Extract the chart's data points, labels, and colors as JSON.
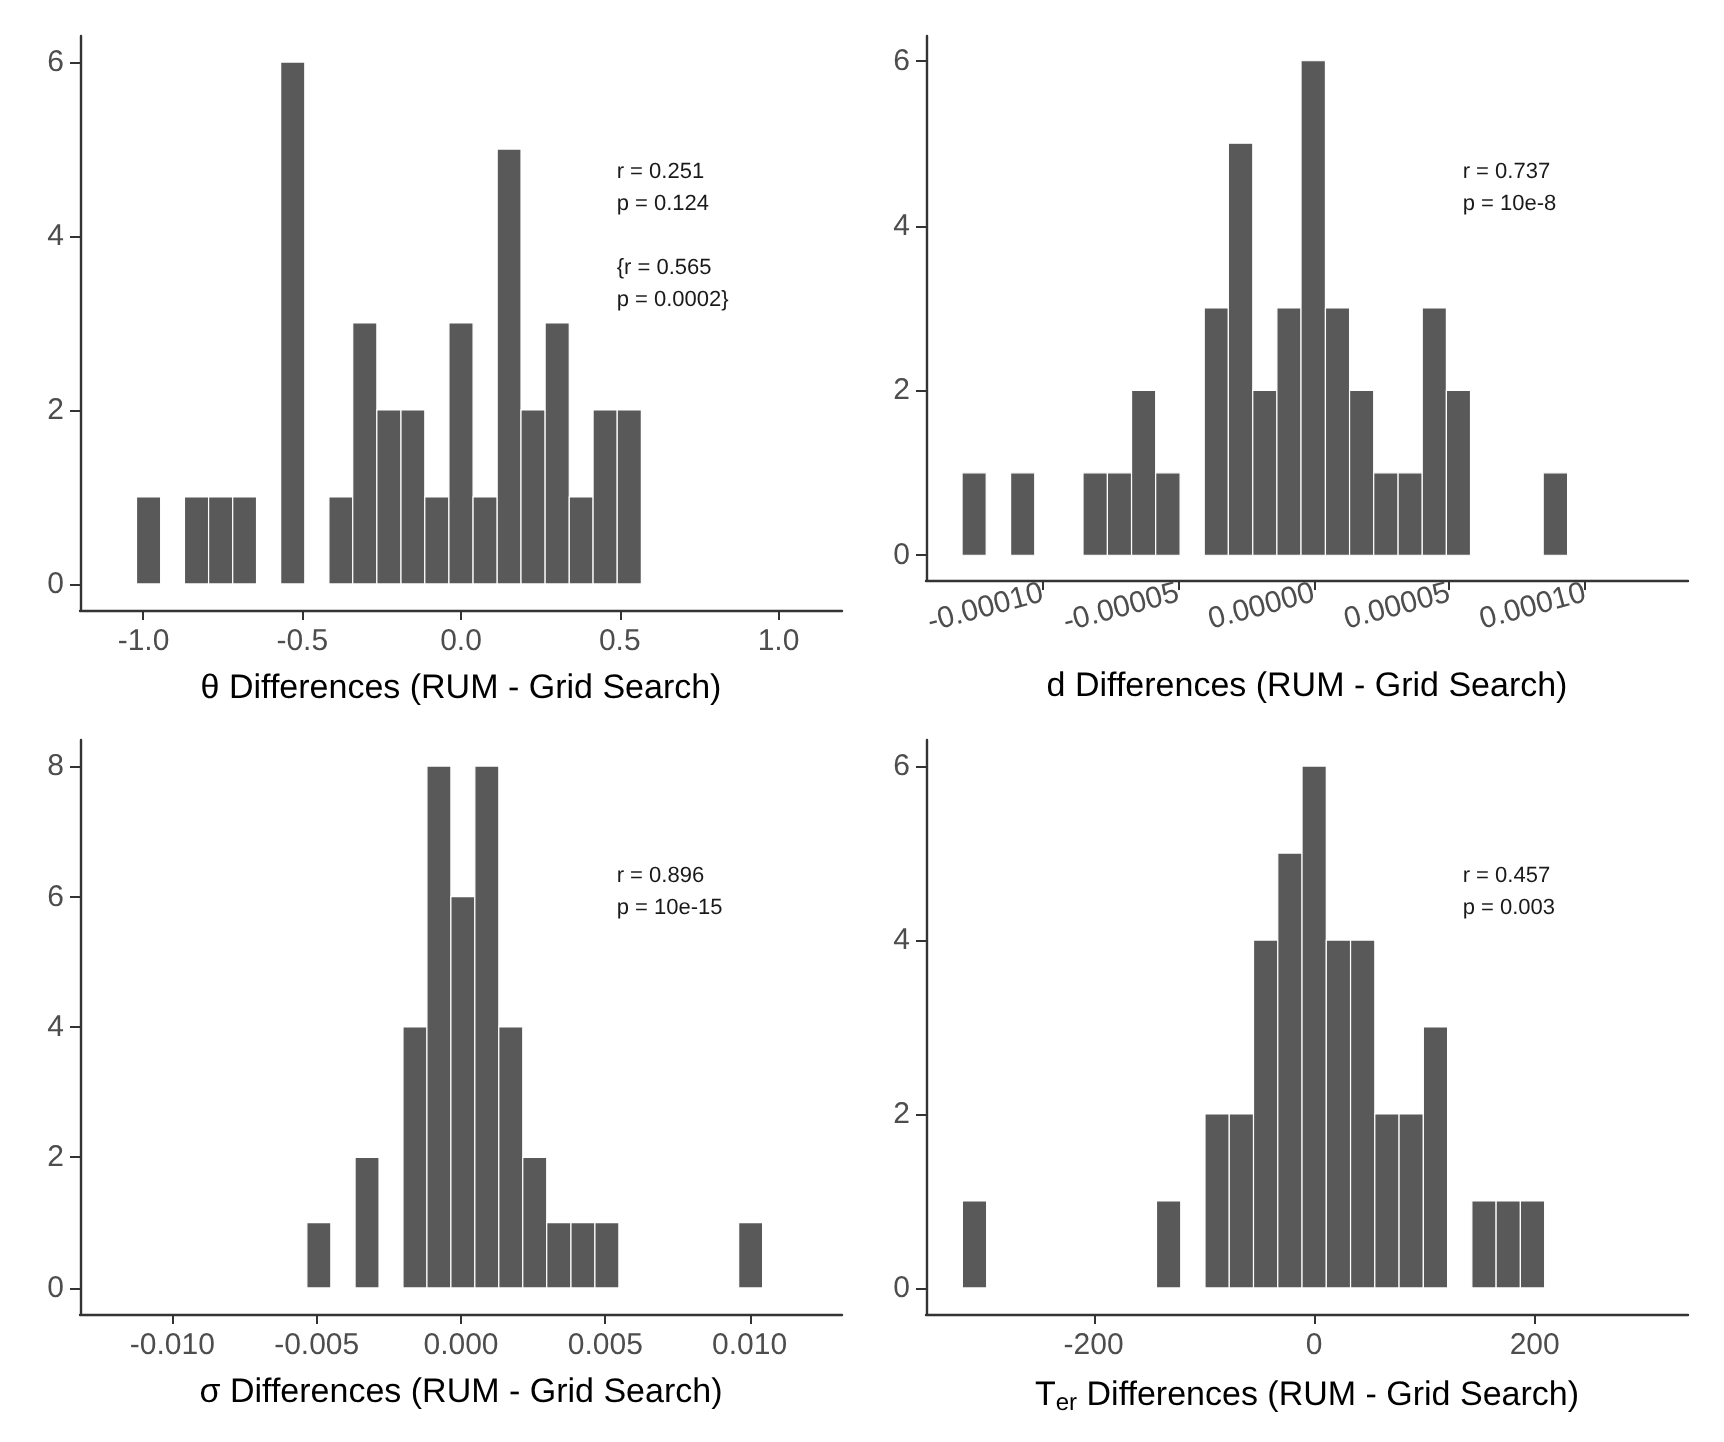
{
  "chart_data": [
    {
      "type": "histogram",
      "xlabel": "θ Differences (RUM - Grid Search)",
      "color": "#595959",
      "bins": [
        -1.022,
        -0.946,
        -0.871,
        -0.795,
        -0.719,
        -0.644,
        -0.568,
        -0.492,
        -0.416,
        -0.341,
        -0.265,
        -0.189,
        -0.114,
        -0.038,
        0.038,
        0.114,
        0.189,
        0.265,
        0.341,
        0.416,
        0.492,
        0.568
      ],
      "values": [
        1,
        0,
        1,
        1,
        1,
        0,
        6,
        0,
        1,
        3,
        2,
        2,
        1,
        3,
        1,
        5,
        2,
        3,
        1,
        2,
        2
      ],
      "xlim": [
        -1.2,
        1.2
      ],
      "xticks": [
        {
          "value": -1,
          "label": "-1.0"
        },
        -0.5,
        {
          "value": 0,
          "label": "0.0"
        },
        0.5,
        {
          "value": 1,
          "label": "1.0"
        }
      ],
      "ylim": [
        -0.3,
        6.3
      ],
      "yticks": [
        0,
        2,
        4,
        6
      ],
      "grid": false,
      "annotations": [
        "r = 0.251\np = 0.124",
        "{r = 0.565\np = 0.0002}"
      ]
    },
    {
      "type": "histogram",
      "xlabel": "d Differences (RUM - Grid Search)",
      "color": "#595959",
      "bins": [
        -0.0001297,
        -0.0001208,
        -0.0001118,
        -0.0001029,
        -9.4e-05,
        -8.51e-05,
        -7.61e-05,
        -6.72e-05,
        -5.83e-05,
        -4.93e-05,
        -4.04e-05,
        -3.15e-05,
        -2.25e-05,
        -1.36e-05,
        -4.7e-06,
        4.3e-06,
        1.32e-05,
        2.21e-05,
        3.11e-05,
        4e-05,
        4.89e-05,
        5.78e-05,
        6.68e-05,
        7.57e-05,
        8.46e-05,
        9.36e-05
      ],
      "values": [
        1,
        0,
        1,
        0,
        0,
        1,
        1,
        2,
        1,
        0,
        3,
        5,
        2,
        3,
        6,
        3,
        2,
        1,
        1,
        3,
        2,
        0,
        0,
        0,
        1
      ],
      "xlim": [
        -0.000143,
        0.000138
      ],
      "xticks": [
        {
          "value": -0.0001,
          "label": "-0.00010"
        },
        {
          "value": -5e-05,
          "label": "-0.00005"
        },
        {
          "value": 0,
          "label": "0.00000"
        },
        {
          "value": 5e-05,
          "label": "0.00005"
        },
        {
          "value": 0.0001,
          "label": "0.00010"
        }
      ],
      "ylim": [
        -0.3,
        6.3
      ],
      "yticks": [
        0,
        2,
        4,
        6
      ],
      "grid": false,
      "annotations": [
        "r = 0.737\np = 10e-8"
      ]
    },
    {
      "type": "histogram",
      "xlabel": "σ Differences (RUM - Grid Search)",
      "color": "#595959",
      "bins": [
        -0.00534,
        -0.00451,
        -0.00367,
        -0.00284,
        -0.00201,
        -0.00118,
        -0.00035,
        0.00048,
        0.00131,
        0.00214,
        0.00297,
        0.00381,
        0.00464,
        0.00547,
        0.0063,
        0.00713,
        0.00796,
        0.00879,
        0.00962,
        0.01045
      ],
      "values": [
        1,
        0,
        2,
        0,
        4,
        8,
        6,
        8,
        4,
        2,
        1,
        1,
        1,
        0,
        0,
        0,
        0,
        0,
        1
      ],
      "xlim": [
        -0.0132,
        0.0132
      ],
      "xticks": [
        {
          "value": -0.01,
          "label": "-0.010"
        },
        {
          "value": -0.005,
          "label": "-0.005"
        },
        {
          "value": 0,
          "label": "0.000"
        },
        {
          "value": 0.005,
          "label": "0.005"
        },
        {
          "value": 0.01,
          "label": "0.010"
        }
      ],
      "ylim": [
        -0.4,
        8.4
      ],
      "yticks": [
        0,
        2,
        4,
        6,
        8
      ],
      "grid": false,
      "annotations": [
        "r = 0.896\np = 10e-15"
      ]
    },
    {
      "type": "histogram",
      "xlabel": "T$_{er}$ Differences (RUM - Grid Search)",
      "color": "#595959",
      "bins": [
        -319,
        -297,
        -275,
        -253,
        -231,
        -209,
        -187,
        -165,
        -143,
        -121,
        -99,
        -77,
        -55,
        -33,
        -11,
        11,
        33,
        55,
        77,
        99,
        121,
        143,
        165,
        187,
        209
      ],
      "values": [
        1,
        0,
        0,
        0,
        0,
        0,
        0,
        0,
        1,
        0,
        2,
        2,
        4,
        5,
        6,
        4,
        4,
        2,
        2,
        3,
        0,
        1,
        1,
        1
      ],
      "xlim": [
        -352,
        339
      ],
      "xticks": [
        -200,
        0,
        200
      ],
      "ylim": [
        -0.3,
        6.3
      ],
      "yticks": [
        0,
        2,
        4,
        6
      ],
      "grid": false,
      "annotations": [
        "r = 0.457\np = 0.003"
      ]
    }
  ]
}
